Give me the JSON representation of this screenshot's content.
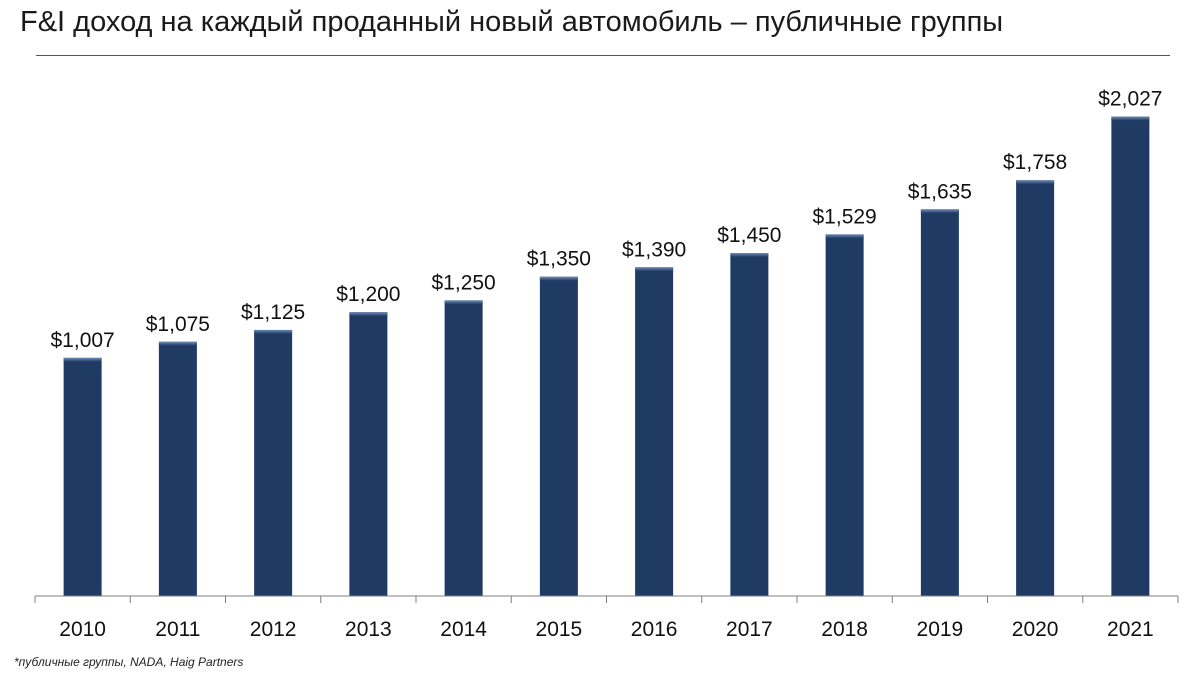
{
  "title": "F&I доход на каждый проданный новый автомобиль – публичные группы",
  "footnote": "*публичные группы, NADA, Haig Partners",
  "colors": {
    "bar": "#1f3a63",
    "bar_highlight": "#6f8db8",
    "axis": "#7f7f7f"
  },
  "chart_data": {
    "type": "bar",
    "title": "F&I доход на каждый проданный новый автомобиль – публичные группы",
    "xlabel": "",
    "ylabel": "",
    "ylim": [
      0,
      2150
    ],
    "grid": false,
    "categories": [
      "2010",
      "2011",
      "2012",
      "2013",
      "2014",
      "2015",
      "2016",
      "2017",
      "2018",
      "2019",
      "2020",
      "2021"
    ],
    "values": [
      1007,
      1075,
      1125,
      1200,
      1250,
      1350,
      1390,
      1450,
      1529,
      1635,
      1758,
      2027
    ],
    "data_labels": [
      "$1,007",
      "$1,075",
      "$1,125",
      "$1,200",
      "$1,250",
      "$1,350",
      "$1,390",
      "$1,450",
      "$1,529",
      "$1,635",
      "$1,758",
      "$2,027"
    ]
  }
}
